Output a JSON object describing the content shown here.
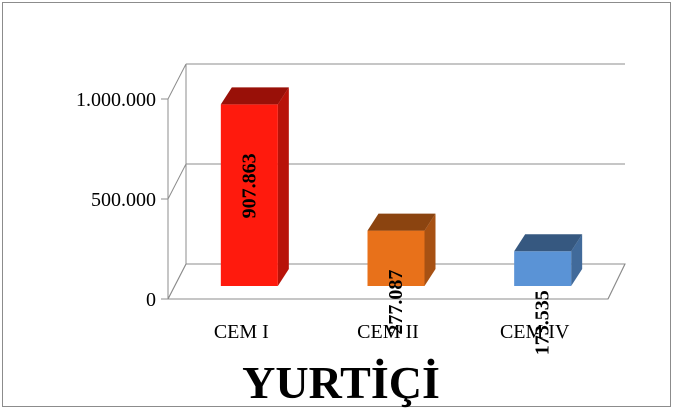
{
  "chart_data": {
    "type": "bar",
    "title": "YURTİÇİ",
    "categories": [
      "CEM I",
      "CEM II",
      "CEM IV"
    ],
    "values": [
      907863,
      277087,
      173535
    ],
    "value_labels": [
      "907.863",
      "277.087",
      "173.535"
    ],
    "ylim": [
      0,
      1000000
    ],
    "yticks": [
      0,
      500000,
      1000000
    ],
    "ytick_labels": [
      "0",
      "500.000",
      "1.000.000"
    ],
    "grid": true,
    "legend": "none",
    "bar_colors": [
      "#ff1a0d",
      "#e8711a",
      "#5a93d6"
    ]
  }
}
